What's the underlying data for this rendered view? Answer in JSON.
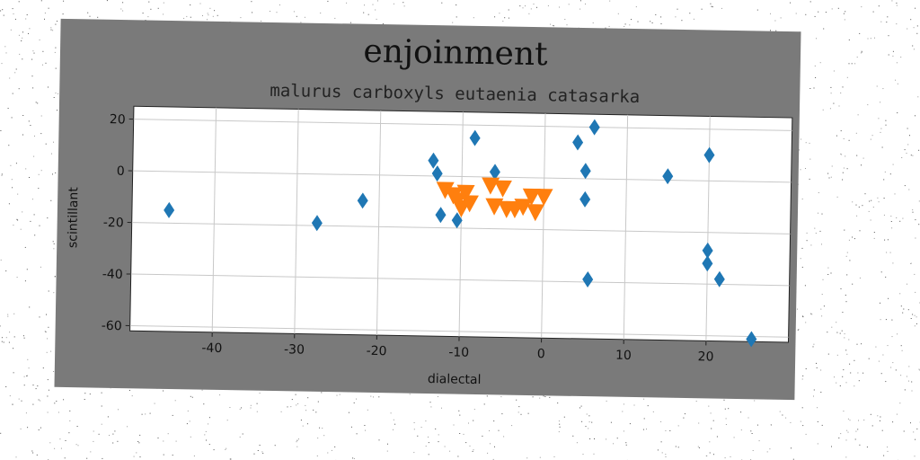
{
  "chart_data": {
    "type": "scatter",
    "title": "enjoinment",
    "subtitle": "malurus carboxyls eutaenia catasarka",
    "xlabel": "dialectal",
    "ylabel": "scintillant",
    "xlim": [
      -50,
      30
    ],
    "ylim": [
      -62,
      25
    ],
    "xticks": [
      -40,
      -30,
      -20,
      -10,
      0,
      10,
      20
    ],
    "yticks": [
      20,
      0,
      -20,
      -40,
      -60
    ],
    "grid": true,
    "legend": "none",
    "series": [
      {
        "marker": "diamond",
        "color": "#1f77b4",
        "points": [
          {
            "x": -45.5,
            "y": -15
          },
          {
            "x": -27.5,
            "y": -19
          },
          {
            "x": -22,
            "y": -10
          },
          {
            "x": -13.5,
            "y": 6
          },
          {
            "x": -13,
            "y": 1
          },
          {
            "x": -12.5,
            "y": -15
          },
          {
            "x": -10.5,
            "y": -17
          },
          {
            "x": -8.5,
            "y": 15
          },
          {
            "x": -6,
            "y": 2
          },
          {
            "x": 4,
            "y": 14
          },
          {
            "x": 5,
            "y": 3
          },
          {
            "x": 5,
            "y": -8
          },
          {
            "x": 5.5,
            "y": -39
          },
          {
            "x": 6,
            "y": 20
          },
          {
            "x": 15,
            "y": 1.5
          },
          {
            "x": 20,
            "y": 10
          },
          {
            "x": 20,
            "y": -27
          },
          {
            "x": 20,
            "y": -32
          },
          {
            "x": 21.5,
            "y": -38
          },
          {
            "x": 25.5,
            "y": -61
          }
        ]
      },
      {
        "marker": "triangle-down",
        "color": "#ff7f0e",
        "points": [
          {
            "x": -12,
            "y": -5
          },
          {
            "x": -11,
            "y": -7
          },
          {
            "x": -10.5,
            "y": -9
          },
          {
            "x": -10,
            "y": -12
          },
          {
            "x": -9.5,
            "y": -6
          },
          {
            "x": -9,
            "y": -10
          },
          {
            "x": -6.5,
            "y": -3
          },
          {
            "x": -5,
            "y": -4
          },
          {
            "x": -6,
            "y": -11
          },
          {
            "x": -4.5,
            "y": -12
          },
          {
            "x": -3.5,
            "y": -12
          },
          {
            "x": -2.5,
            "y": -11
          },
          {
            "x": -1.5,
            "y": -7
          },
          {
            "x": -1,
            "y": -13
          },
          {
            "x": 0,
            "y": -7
          }
        ]
      }
    ]
  },
  "colors": {
    "figure_background": "#7a7a7a",
    "plot_background": "#ffffff",
    "grid": "#c8c8c8"
  }
}
